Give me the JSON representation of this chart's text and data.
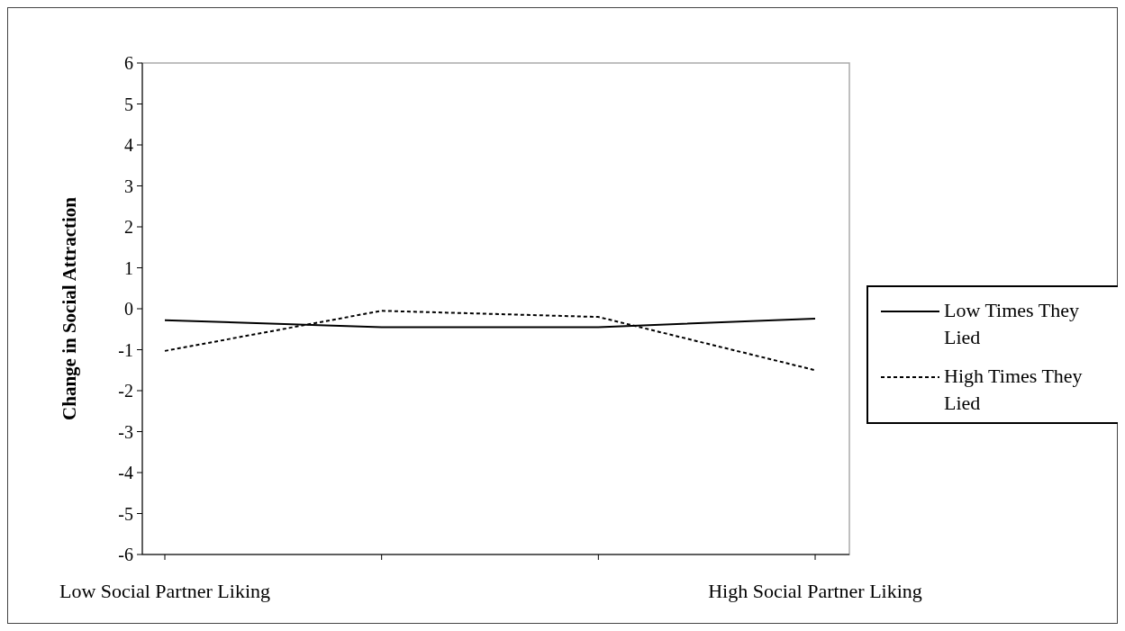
{
  "chart_data": {
    "type": "line",
    "ylabel": "Change in Social Attraction",
    "categories": [
      "Low Social Partner Liking",
      null,
      null,
      "High Social Partner Liking"
    ],
    "series": [
      {
        "name": "Low Times They Lied",
        "color": "#000000",
        "line_style": "solid",
        "values": [
          -0.28,
          -0.45,
          -0.45,
          -0.24
        ]
      },
      {
        "name": "High Times They Lied",
        "color": "#000000",
        "line_style": "dotted",
        "values": [
          -1.03,
          -0.05,
          -0.2,
          -1.5
        ]
      }
    ],
    "ylim": [
      -6,
      6
    ],
    "yticks": [
      -6,
      -5,
      -4,
      -3,
      -2,
      -1,
      0,
      1,
      2,
      3,
      4,
      5,
      6
    ],
    "grid": false,
    "legend": "right",
    "marker": "none"
  }
}
